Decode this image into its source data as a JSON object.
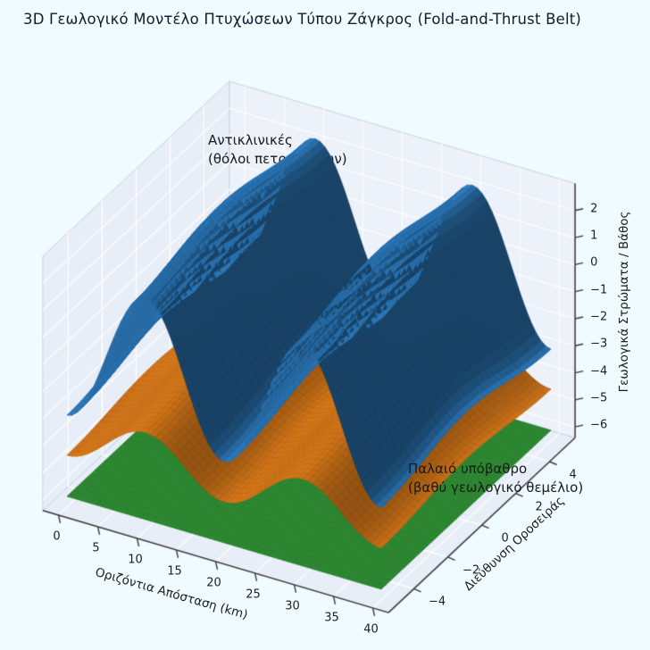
{
  "page": {
    "background": "#effbff",
    "title_color": "#131c30"
  },
  "chart_data": {
    "type": "surface_3d",
    "title": "3D Γεωλογικό Μοντέλο Πτυχώσεων Τύπου Ζάγκρος (Fold-and-Thrust Belt)",
    "axes": {
      "x": {
        "label": "Οριζόντια Απόσταση (km)",
        "ticks": [
          0,
          5,
          10,
          15,
          20,
          25,
          30,
          35,
          40
        ],
        "range": [
          0,
          40
        ]
      },
      "y": {
        "label": "Διεύθυνση Οροσειράς",
        "ticks": [
          -4,
          -2,
          0,
          2,
          4
        ],
        "range": [
          -5,
          5
        ]
      },
      "z": {
        "label": "Γεωλογικά Στρώματα / Βάθος",
        "ticks": [
          2,
          1,
          0,
          -1,
          -2,
          -3,
          -4,
          -5,
          -6
        ],
        "range": [
          -6,
          2
        ]
      }
    },
    "surfaces": [
      {
        "name": "basement-flat-layer",
        "color": "#2f9434",
        "z0": -6.0,
        "amp_x": 0.0,
        "amp_y": 0.0,
        "wavelength_km": 20
      },
      {
        "name": "middle-folded-layer",
        "color": "#e07c1a",
        "z0": -3.45,
        "amp_x": 0.85,
        "amp_y": 0.18,
        "wavelength_km": 20
      },
      {
        "name": "upper-anticline-layer",
        "color": "#2e80c6",
        "z0": -0.1,
        "amp_x": 2.6,
        "amp_y": 0.3,
        "wavelength_km": 20
      }
    ],
    "annotations": [
      {
        "id": "anticlines",
        "lines": [
          "Αντικλινικές",
          "(θόλοι πετρωμάτων)"
        ]
      },
      {
        "id": "basement",
        "lines": [
          "Παλαιό υπόβαθρο",
          "(βαθύ γεωλογικό θεμέλιο)"
        ]
      }
    ],
    "style": {
      "pane_color": "#e8eef8",
      "pane_color_right": "#ecf1fa",
      "grid_color": "#ffffff",
      "edge_color": "#c9d3e3",
      "axis_line_color": "#3a3a3a",
      "grid_on": true,
      "legend": "none"
    }
  }
}
